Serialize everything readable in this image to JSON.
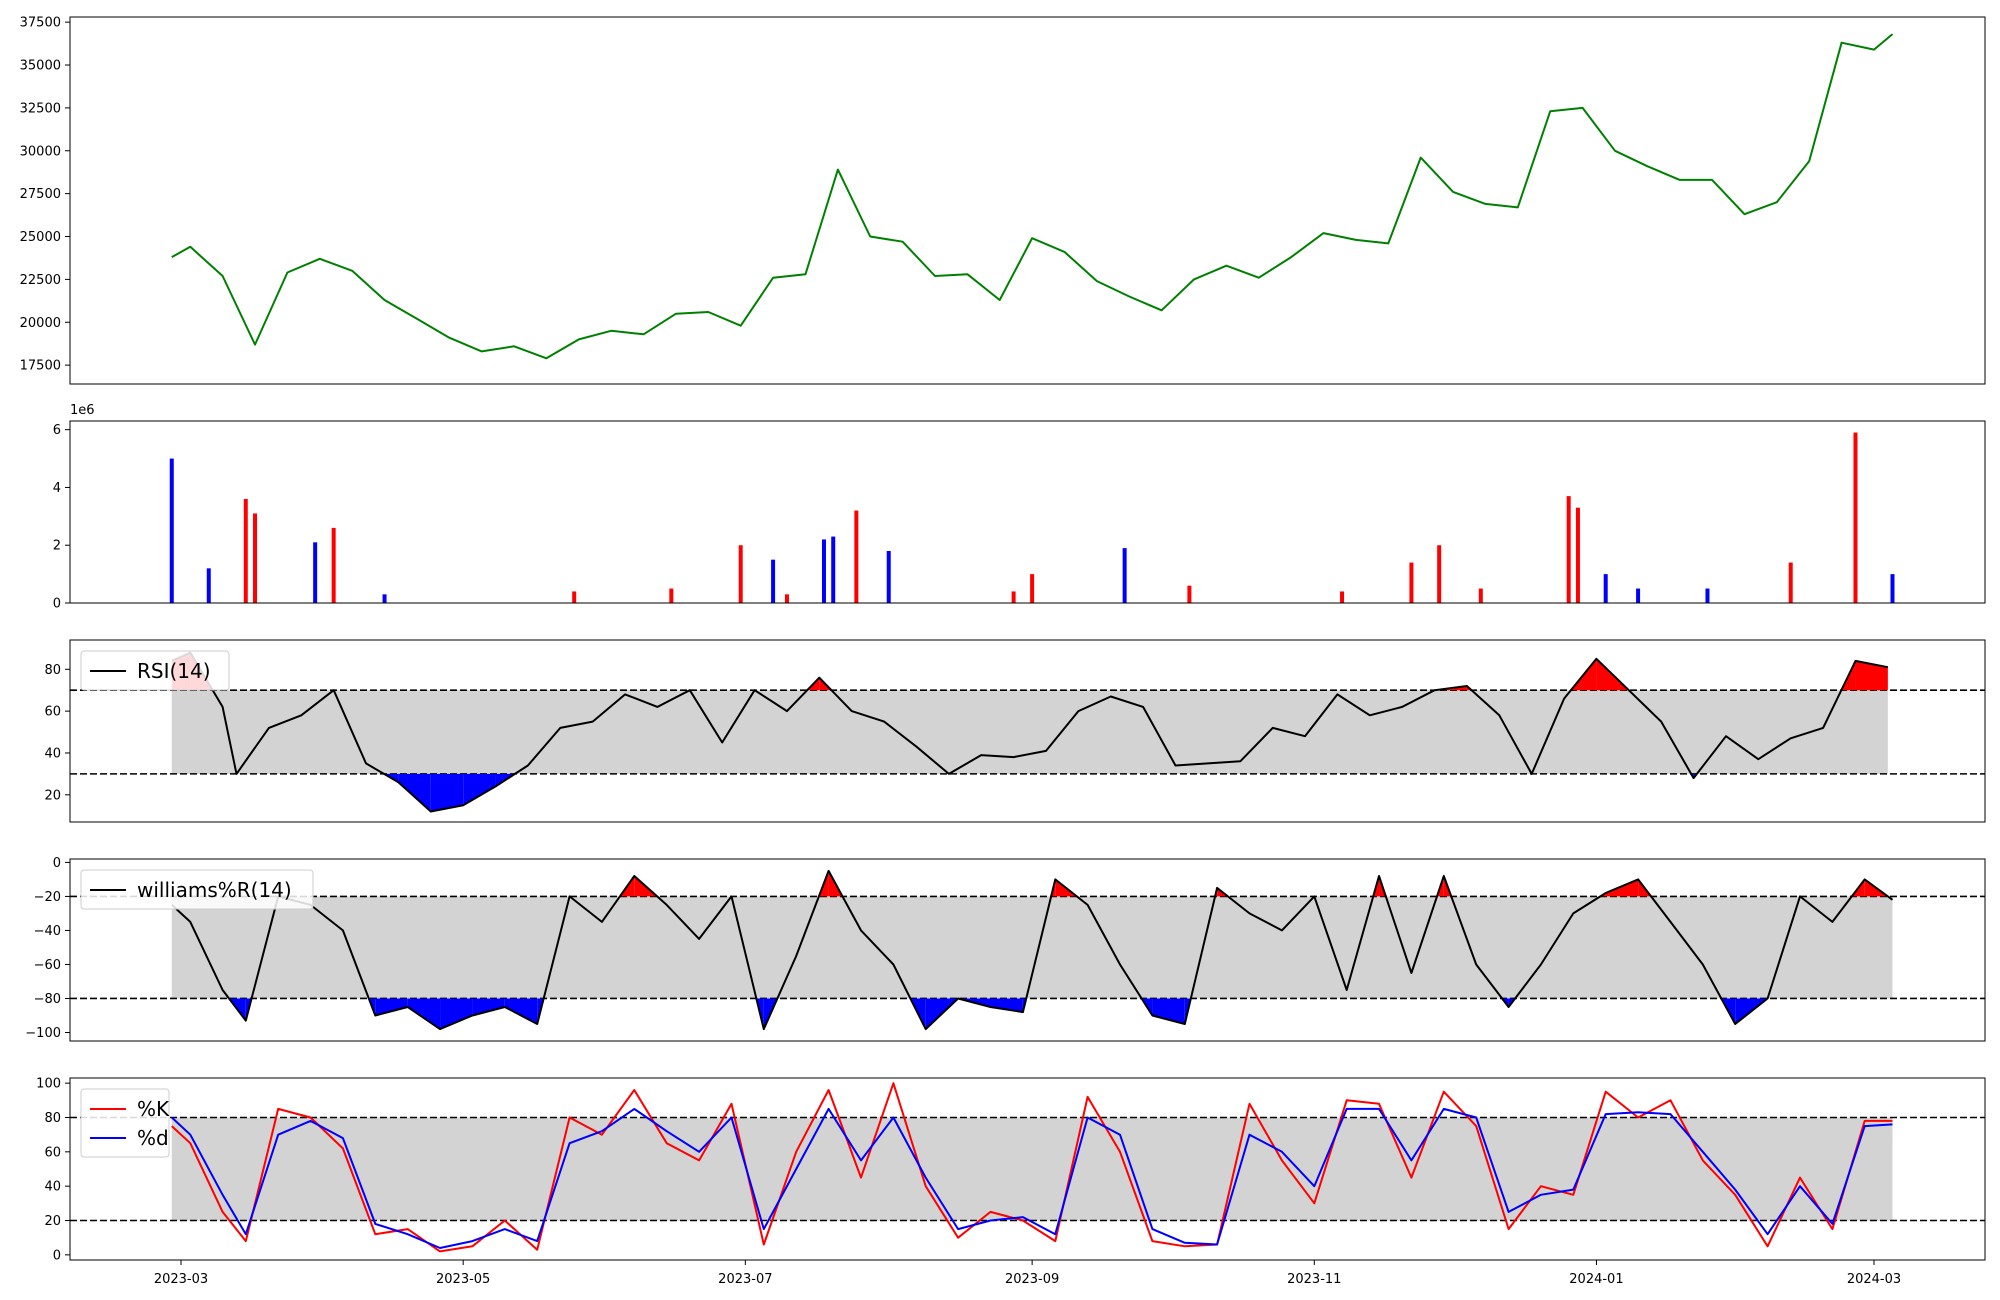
{
  "chart_data": [
    {
      "panel": "price",
      "type": "line",
      "ylim": [
        16400,
        37800
      ],
      "yticks": [
        17500,
        20000,
        22500,
        25000,
        27500,
        30000,
        32500,
        35000,
        37500
      ],
      "ytick_labels": [
        "17500",
        "20000",
        "22500",
        "25000",
        "27500",
        "30000",
        "32500",
        "35000",
        "37500"
      ],
      "color": "#008000",
      "series": [
        {
          "x": [
            "2023-02-27",
            "2023-03-03",
            "2023-03-10",
            "2023-03-17",
            "2023-03-24",
            "2023-03-31",
            "2023-04-07",
            "2023-04-14",
            "2023-04-21",
            "2023-04-28",
            "2023-05-05",
            "2023-05-12",
            "2023-05-19",
            "2023-05-26",
            "2023-06-02",
            "2023-06-09",
            "2023-06-16",
            "2023-06-23",
            "2023-06-30",
            "2023-07-07",
            "2023-07-14",
            "2023-07-21",
            "2023-07-28",
            "2023-08-04",
            "2023-08-11",
            "2023-08-18",
            "2023-08-25",
            "2023-09-01",
            "2023-09-08",
            "2023-09-15",
            "2023-09-22",
            "2023-09-29",
            "2023-10-06",
            "2023-10-13",
            "2023-10-20",
            "2023-10-27",
            "2023-11-03",
            "2023-11-10",
            "2023-11-17",
            "2023-11-24",
            "2023-12-01",
            "2023-12-08",
            "2023-12-15",
            "2023-12-22",
            "2023-12-29",
            "2024-01-05",
            "2024-01-12",
            "2024-01-19",
            "2024-01-26",
            "2024-02-02",
            "2024-02-09",
            "2024-02-16",
            "2024-02-23",
            "2024-03-01",
            "2024-03-05"
          ],
          "values": [
            23800,
            24400,
            22700,
            18700,
            22900,
            23700,
            23000,
            21300,
            20200,
            19100,
            18300,
            18600,
            17900,
            19000,
            19500,
            19300,
            20500,
            20600,
            19800,
            22600,
            22800,
            28900,
            25000,
            24700,
            22700,
            22800,
            21300,
            24900,
            24100,
            22400,
            21500,
            20700,
            22500,
            23300,
            22600,
            23800,
            25200,
            24800,
            24600,
            29600,
            27600,
            26900,
            26700,
            32300,
            32500,
            30000,
            29100,
            28300,
            28300,
            26300,
            27000,
            29400,
            36300,
            35900,
            36800
          ]
        }
      ]
    },
    {
      "panel": "volume",
      "type": "bar",
      "scale_label": "1e6",
      "ylim": [
        0,
        6.3
      ],
      "yticks": [
        0,
        2,
        4,
        6
      ],
      "ytick_labels": [
        "0",
        "2",
        "4",
        "6"
      ],
      "colors": {
        "up": "#ff0000",
        "down": "#0000ff"
      },
      "series": [
        {
          "x": [
            "2023-02-27",
            "2023-03-07",
            "2023-03-15",
            "2023-03-17",
            "2023-03-30",
            "2023-04-03",
            "2023-04-14",
            "2023-05-25",
            "2023-06-15",
            "2023-06-30",
            "2023-07-07",
            "2023-07-10",
            "2023-07-18",
            "2023-07-20",
            "2023-07-25",
            "2023-08-01",
            "2023-08-28",
            "2023-09-01",
            "2023-09-21",
            "2023-10-05",
            "2023-11-07",
            "2023-11-22",
            "2023-11-28",
            "2023-12-07",
            "2023-12-26",
            "2023-12-28",
            "2024-01-03",
            "2024-01-10",
            "2024-01-25",
            "2024-02-12",
            "2024-02-26",
            "2024-03-05"
          ],
          "values": [
            5.0,
            1.2,
            3.6,
            3.1,
            2.1,
            2.6,
            0.3,
            0.4,
            0.5,
            2.0,
            1.5,
            0.3,
            2.2,
            2.3,
            3.2,
            1.8,
            0.4,
            1.0,
            1.9,
            0.6,
            0.4,
            1.4,
            2.0,
            0.5,
            3.7,
            3.3,
            1.0,
            0.5,
            0.5,
            1.4,
            5.9,
            1.0
          ],
          "direction": [
            "down",
            "down",
            "up",
            "up",
            "down",
            "up",
            "down",
            "up",
            "up",
            "up",
            "down",
            "up",
            "down",
            "down",
            "up",
            "down",
            "up",
            "up",
            "down",
            "up",
            "up",
            "up",
            "up",
            "up",
            "up",
            "up",
            "down",
            "down",
            "down",
            "up",
            "up",
            "down"
          ]
        }
      ]
    },
    {
      "panel": "rsi",
      "type": "line",
      "ylim": [
        7,
        94
      ],
      "yticks": [
        20,
        40,
        60,
        80
      ],
      "ytick_labels": [
        "20",
        "40",
        "60",
        "80"
      ],
      "thresholds": [
        30,
        70
      ],
      "legend": "RSI(14)",
      "legend_position": "upper-left",
      "fill_colors": {
        "above": "#ff0000",
        "below": "#0000ff",
        "band": "#d3d3d3"
      },
      "series": [
        {
          "name": "RSI(14)",
          "x": [
            "2023-02-27",
            "2023-03-03",
            "2023-03-10",
            "2023-03-13",
            "2023-03-20",
            "2023-03-27",
            "2023-04-03",
            "2023-04-10",
            "2023-04-17",
            "2023-04-24",
            "2023-05-01",
            "2023-05-08",
            "2023-05-15",
            "2023-05-22",
            "2023-05-29",
            "2023-06-05",
            "2023-06-12",
            "2023-06-19",
            "2023-06-26",
            "2023-07-03",
            "2023-07-10",
            "2023-07-17",
            "2023-07-24",
            "2023-07-31",
            "2023-08-07",
            "2023-08-14",
            "2023-08-21",
            "2023-08-28",
            "2023-09-04",
            "2023-09-11",
            "2023-09-18",
            "2023-09-25",
            "2023-10-02",
            "2023-10-09",
            "2023-10-16",
            "2023-10-23",
            "2023-10-30",
            "2023-11-06",
            "2023-11-13",
            "2023-11-20",
            "2023-11-27",
            "2023-12-04",
            "2023-12-11",
            "2023-12-18",
            "2023-12-25",
            "2024-01-01",
            "2024-01-08",
            "2024-01-15",
            "2024-01-22",
            "2024-01-29",
            "2024-02-05",
            "2024-02-12",
            "2024-02-19",
            "2024-02-26",
            "2024-03-04"
          ],
          "values": [
            84,
            88,
            62,
            30,
            52,
            58,
            70,
            35,
            26,
            12,
            15,
            24,
            34,
            52,
            55,
            68,
            62,
            70,
            45,
            70,
            60,
            76,
            60,
            55,
            43,
            30,
            39,
            38,
            41,
            60,
            67,
            62,
            34,
            35,
            36,
            52,
            48,
            68,
            58,
            62,
            70,
            72,
            58,
            30,
            66,
            85,
            70,
            55,
            28,
            48,
            37,
            47,
            52,
            84,
            81
          ]
        }
      ]
    },
    {
      "panel": "williams",
      "type": "line",
      "ylim": [
        -105,
        2
      ],
      "yticks": [
        0,
        -20,
        -40,
        -60,
        -80,
        -100
      ],
      "ytick_labels": [
        "0",
        "−20",
        "−40",
        "−60",
        "−80",
        "−100"
      ],
      "thresholds": [
        -20,
        -80
      ],
      "legend": "williams%R(14)",
      "legend_position": "upper-left",
      "fill_colors": {
        "above": "#ff0000",
        "below": "#0000ff",
        "band": "#d3d3d3"
      },
      "series": [
        {
          "name": "williams%R(14)",
          "x": [
            "2023-02-27",
            "2023-03-03",
            "2023-03-10",
            "2023-03-15",
            "2023-03-22",
            "2023-03-29",
            "2023-04-05",
            "2023-04-12",
            "2023-04-19",
            "2023-04-26",
            "2023-05-03",
            "2023-05-10",
            "2023-05-17",
            "2023-05-24",
            "2023-05-31",
            "2023-06-07",
            "2023-06-14",
            "2023-06-21",
            "2023-06-28",
            "2023-07-05",
            "2023-07-12",
            "2023-07-19",
            "2023-07-26",
            "2023-08-02",
            "2023-08-09",
            "2023-08-16",
            "2023-08-23",
            "2023-08-30",
            "2023-09-06",
            "2023-09-13",
            "2023-09-20",
            "2023-09-27",
            "2023-10-04",
            "2023-10-11",
            "2023-10-18",
            "2023-10-25",
            "2023-11-01",
            "2023-11-08",
            "2023-11-15",
            "2023-11-22",
            "2023-11-29",
            "2023-12-06",
            "2023-12-13",
            "2023-12-20",
            "2023-12-27",
            "2024-01-03",
            "2024-01-10",
            "2024-01-17",
            "2024-01-24",
            "2024-01-31",
            "2024-02-07",
            "2024-02-14",
            "2024-02-21",
            "2024-02-28",
            "2024-03-05"
          ],
          "values": [
            -25,
            -35,
            -75,
            -93,
            -20,
            -25,
            -40,
            -90,
            -85,
            -98,
            -90,
            -85,
            -95,
            -20,
            -35,
            -8,
            -25,
            -45,
            -20,
            -98,
            -55,
            -5,
            -40,
            -60,
            -98,
            -80,
            -85,
            -88,
            -10,
            -25,
            -60,
            -90,
            -95,
            -15,
            -30,
            -40,
            -20,
            -75,
            -8,
            -65,
            -8,
            -60,
            -85,
            -60,
            -30,
            -18,
            -10,
            -35,
            -60,
            -95,
            -80,
            -20,
            -35,
            -10,
            -22
          ]
        }
      ]
    },
    {
      "panel": "stochastic",
      "type": "line",
      "ylim": [
        -3,
        103
      ],
      "yticks": [
        0,
        20,
        40,
        60,
        80,
        100
      ],
      "ytick_labels": [
        "0",
        "20",
        "40",
        "60",
        "80",
        "100"
      ],
      "thresholds": [
        20,
        80
      ],
      "legend_position": "upper-left",
      "fill_colors": {
        "band": "#d3d3d3"
      },
      "series": [
        {
          "name": "%K",
          "color": "#ff0000",
          "x": [
            "2023-02-27",
            "2023-03-03",
            "2023-03-10",
            "2023-03-15",
            "2023-03-22",
            "2023-03-29",
            "2023-04-05",
            "2023-04-12",
            "2023-04-19",
            "2023-04-26",
            "2023-05-03",
            "2023-05-10",
            "2023-05-17",
            "2023-05-24",
            "2023-05-31",
            "2023-06-07",
            "2023-06-14",
            "2023-06-21",
            "2023-06-28",
            "2023-07-05",
            "2023-07-12",
            "2023-07-19",
            "2023-07-26",
            "2023-08-02",
            "2023-08-09",
            "2023-08-16",
            "2023-08-23",
            "2023-08-30",
            "2023-09-06",
            "2023-09-13",
            "2023-09-20",
            "2023-09-27",
            "2023-10-04",
            "2023-10-11",
            "2023-10-18",
            "2023-10-25",
            "2023-11-01",
            "2023-11-08",
            "2023-11-15",
            "2023-11-22",
            "2023-11-29",
            "2023-12-06",
            "2023-12-13",
            "2023-12-20",
            "2023-12-27",
            "2024-01-03",
            "2024-01-10",
            "2024-01-17",
            "2024-01-24",
            "2024-01-31",
            "2024-02-07",
            "2024-02-14",
            "2024-02-21",
            "2024-02-28",
            "2024-03-05"
          ],
          "values": [
            75,
            65,
            25,
            8,
            85,
            80,
            62,
            12,
            15,
            2,
            5,
            20,
            3,
            80,
            70,
            96,
            65,
            55,
            88,
            6,
            60,
            96,
            45,
            100,
            40,
            10,
            25,
            20,
            8,
            92,
            60,
            8,
            5,
            6,
            88,
            55,
            30,
            90,
            88,
            45,
            95,
            75,
            15,
            40,
            35,
            95,
            80,
            90,
            55,
            35,
            5,
            45,
            15,
            78,
            78
          ]
        },
        {
          "name": "%d",
          "color": "#0000ff",
          "x": [
            "2023-02-27",
            "2023-03-03",
            "2023-03-10",
            "2023-03-15",
            "2023-03-22",
            "2023-03-29",
            "2023-04-05",
            "2023-04-12",
            "2023-04-19",
            "2023-04-26",
            "2023-05-03",
            "2023-05-10",
            "2023-05-17",
            "2023-05-24",
            "2023-05-31",
            "2023-06-07",
            "2023-06-14",
            "2023-06-21",
            "2023-06-28",
            "2023-07-05",
            "2023-07-12",
            "2023-07-19",
            "2023-07-26",
            "2023-08-02",
            "2023-08-09",
            "2023-08-16",
            "2023-08-23",
            "2023-08-30",
            "2023-09-06",
            "2023-09-13",
            "2023-09-20",
            "2023-09-27",
            "2023-10-04",
            "2023-10-11",
            "2023-10-18",
            "2023-10-25",
            "2023-11-01",
            "2023-11-08",
            "2023-11-15",
            "2023-11-22",
            "2023-11-29",
            "2023-12-06",
            "2023-12-13",
            "2023-12-20",
            "2023-12-27",
            "2024-01-03",
            "2024-01-10",
            "2024-01-17",
            "2024-01-24",
            "2024-01-31",
            "2024-02-07",
            "2024-02-14",
            "2024-02-21",
            "2024-02-28",
            "2024-03-05"
          ],
          "values": [
            80,
            70,
            35,
            12,
            70,
            78,
            68,
            18,
            12,
            4,
            8,
            15,
            8,
            65,
            72,
            85,
            72,
            60,
            80,
            15,
            50,
            85,
            55,
            80,
            45,
            15,
            20,
            22,
            12,
            80,
            70,
            15,
            7,
            6,
            70,
            60,
            40,
            85,
            85,
            55,
            85,
            80,
            25,
            35,
            38,
            82,
            83,
            82,
            60,
            38,
            12,
            40,
            18,
            75,
            76
          ]
        }
      ]
    }
  ],
  "x_axis": {
    "tick_dates": [
      "2023-03-01",
      "2023-05-01",
      "2023-07-01",
      "2023-09-01",
      "2023-11-01",
      "2024-01-01",
      "2024-03-01"
    ],
    "tick_labels": [
      "2023-03",
      "2023-05",
      "2023-07",
      "2023-09",
      "2023-11",
      "2024-01",
      "2024-03"
    ],
    "xlim": [
      "2023-02-05",
      "2024-03-25"
    ]
  }
}
